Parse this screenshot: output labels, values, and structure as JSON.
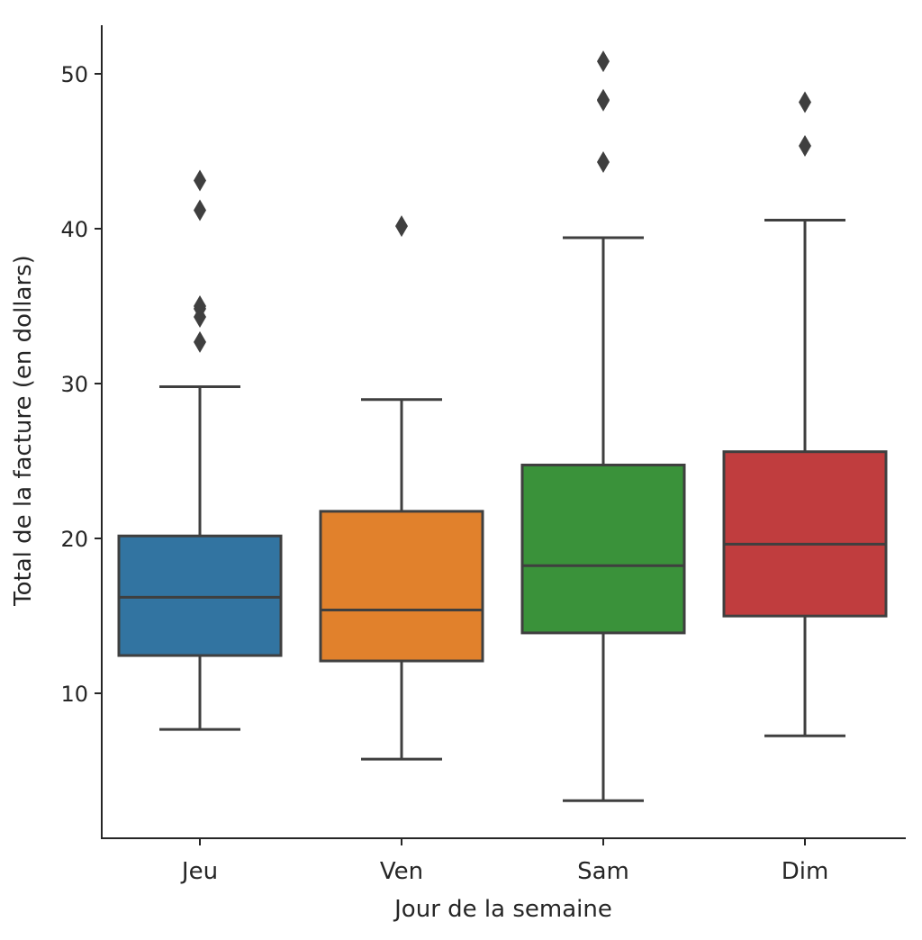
{
  "chart_data": {
    "type": "boxplot",
    "xlabel": "Jour de la semaine",
    "ylabel": "Total de la facture (en dollars)",
    "ylim": [
      0.5,
      53
    ],
    "yticks": [
      10,
      20,
      30,
      40,
      50
    ],
    "grid": false,
    "categories": [
      "Jeu",
      "Ven",
      "Sam",
      "Dim"
    ],
    "colors": [
      "#3274a1",
      "#e1812c",
      "#3a923a",
      "#c03d3e"
    ],
    "boxes": [
      {
        "category": "Jeu",
        "whisker_low": 7.67,
        "q1": 12.44,
        "median": 16.2,
        "q3": 20.16,
        "whisker_high": 29.8,
        "outliers": [
          32.68,
          34.3,
          34.83,
          35.0,
          41.19,
          43.11
        ]
      },
      {
        "category": "Ven",
        "whisker_low": 5.75,
        "q1": 12.09,
        "median": 15.38,
        "q3": 21.75,
        "whisker_high": 28.97,
        "outliers": [
          40.17
        ]
      },
      {
        "category": "Sam",
        "whisker_low": 3.07,
        "q1": 13.9,
        "median": 18.24,
        "q3": 24.74,
        "whisker_high": 39.42,
        "outliers": [
          44.3,
          48.27,
          48.33,
          50.81
        ]
      },
      {
        "category": "Dim",
        "whisker_low": 7.25,
        "q1": 14.99,
        "median": 19.63,
        "q3": 25.6,
        "whisker_high": 40.55,
        "outliers": [
          45.35,
          48.17
        ]
      }
    ]
  }
}
